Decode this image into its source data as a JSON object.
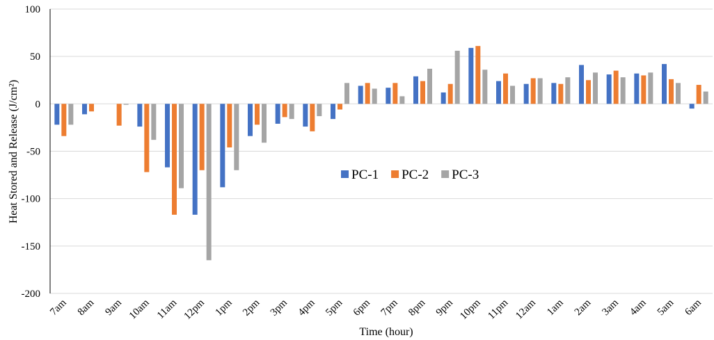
{
  "chart_data": {
    "type": "bar",
    "x_label": "Time (hour)",
    "y_label": "Heat Stored and Release (J/cm²)",
    "categories": [
      "7am",
      "8am",
      "9am",
      "10am",
      "11am",
      "12pm",
      "1pm",
      "2pm",
      "3pm",
      "4pm",
      "5pm",
      "6pm",
      "7pm",
      "8pm",
      "9pm",
      "10pm",
      "11pm",
      "12am",
      "1am",
      "2am",
      "3am",
      "4am",
      "5am",
      "6am"
    ],
    "series": [
      {
        "name": "PC-1",
        "color": "#4472c4",
        "values": [
          -22,
          -11,
          0,
          -24,
          -67,
          -117,
          -88,
          -34,
          -21,
          -24,
          -16,
          19,
          17,
          29,
          12,
          59,
          24,
          21,
          22,
          41,
          31,
          32,
          42,
          -5
        ]
      },
      {
        "name": "PC-2",
        "color": "#ed7d31",
        "values": [
          -34,
          -8,
          -23,
          -72,
          -117,
          -70,
          -46,
          -22,
          -14,
          -29,
          -6,
          22,
          22,
          24,
          21,
          61,
          32,
          27,
          21,
          25,
          35,
          30,
          26,
          20
        ]
      },
      {
        "name": "PC-3",
        "color": "#a5a5a5",
        "values": [
          -22,
          0,
          -1,
          -38,
          -89,
          -165,
          -70,
          -41,
          -16,
          -13,
          22,
          16,
          8,
          37,
          56,
          36,
          19,
          27,
          28,
          33,
          28,
          33,
          22,
          13
        ]
      }
    ],
    "ylim": [
      -200,
      100
    ],
    "yticks": [
      -200,
      -150,
      -100,
      -50,
      0,
      50,
      100
    ],
    "grid": true,
    "legend": "center"
  }
}
